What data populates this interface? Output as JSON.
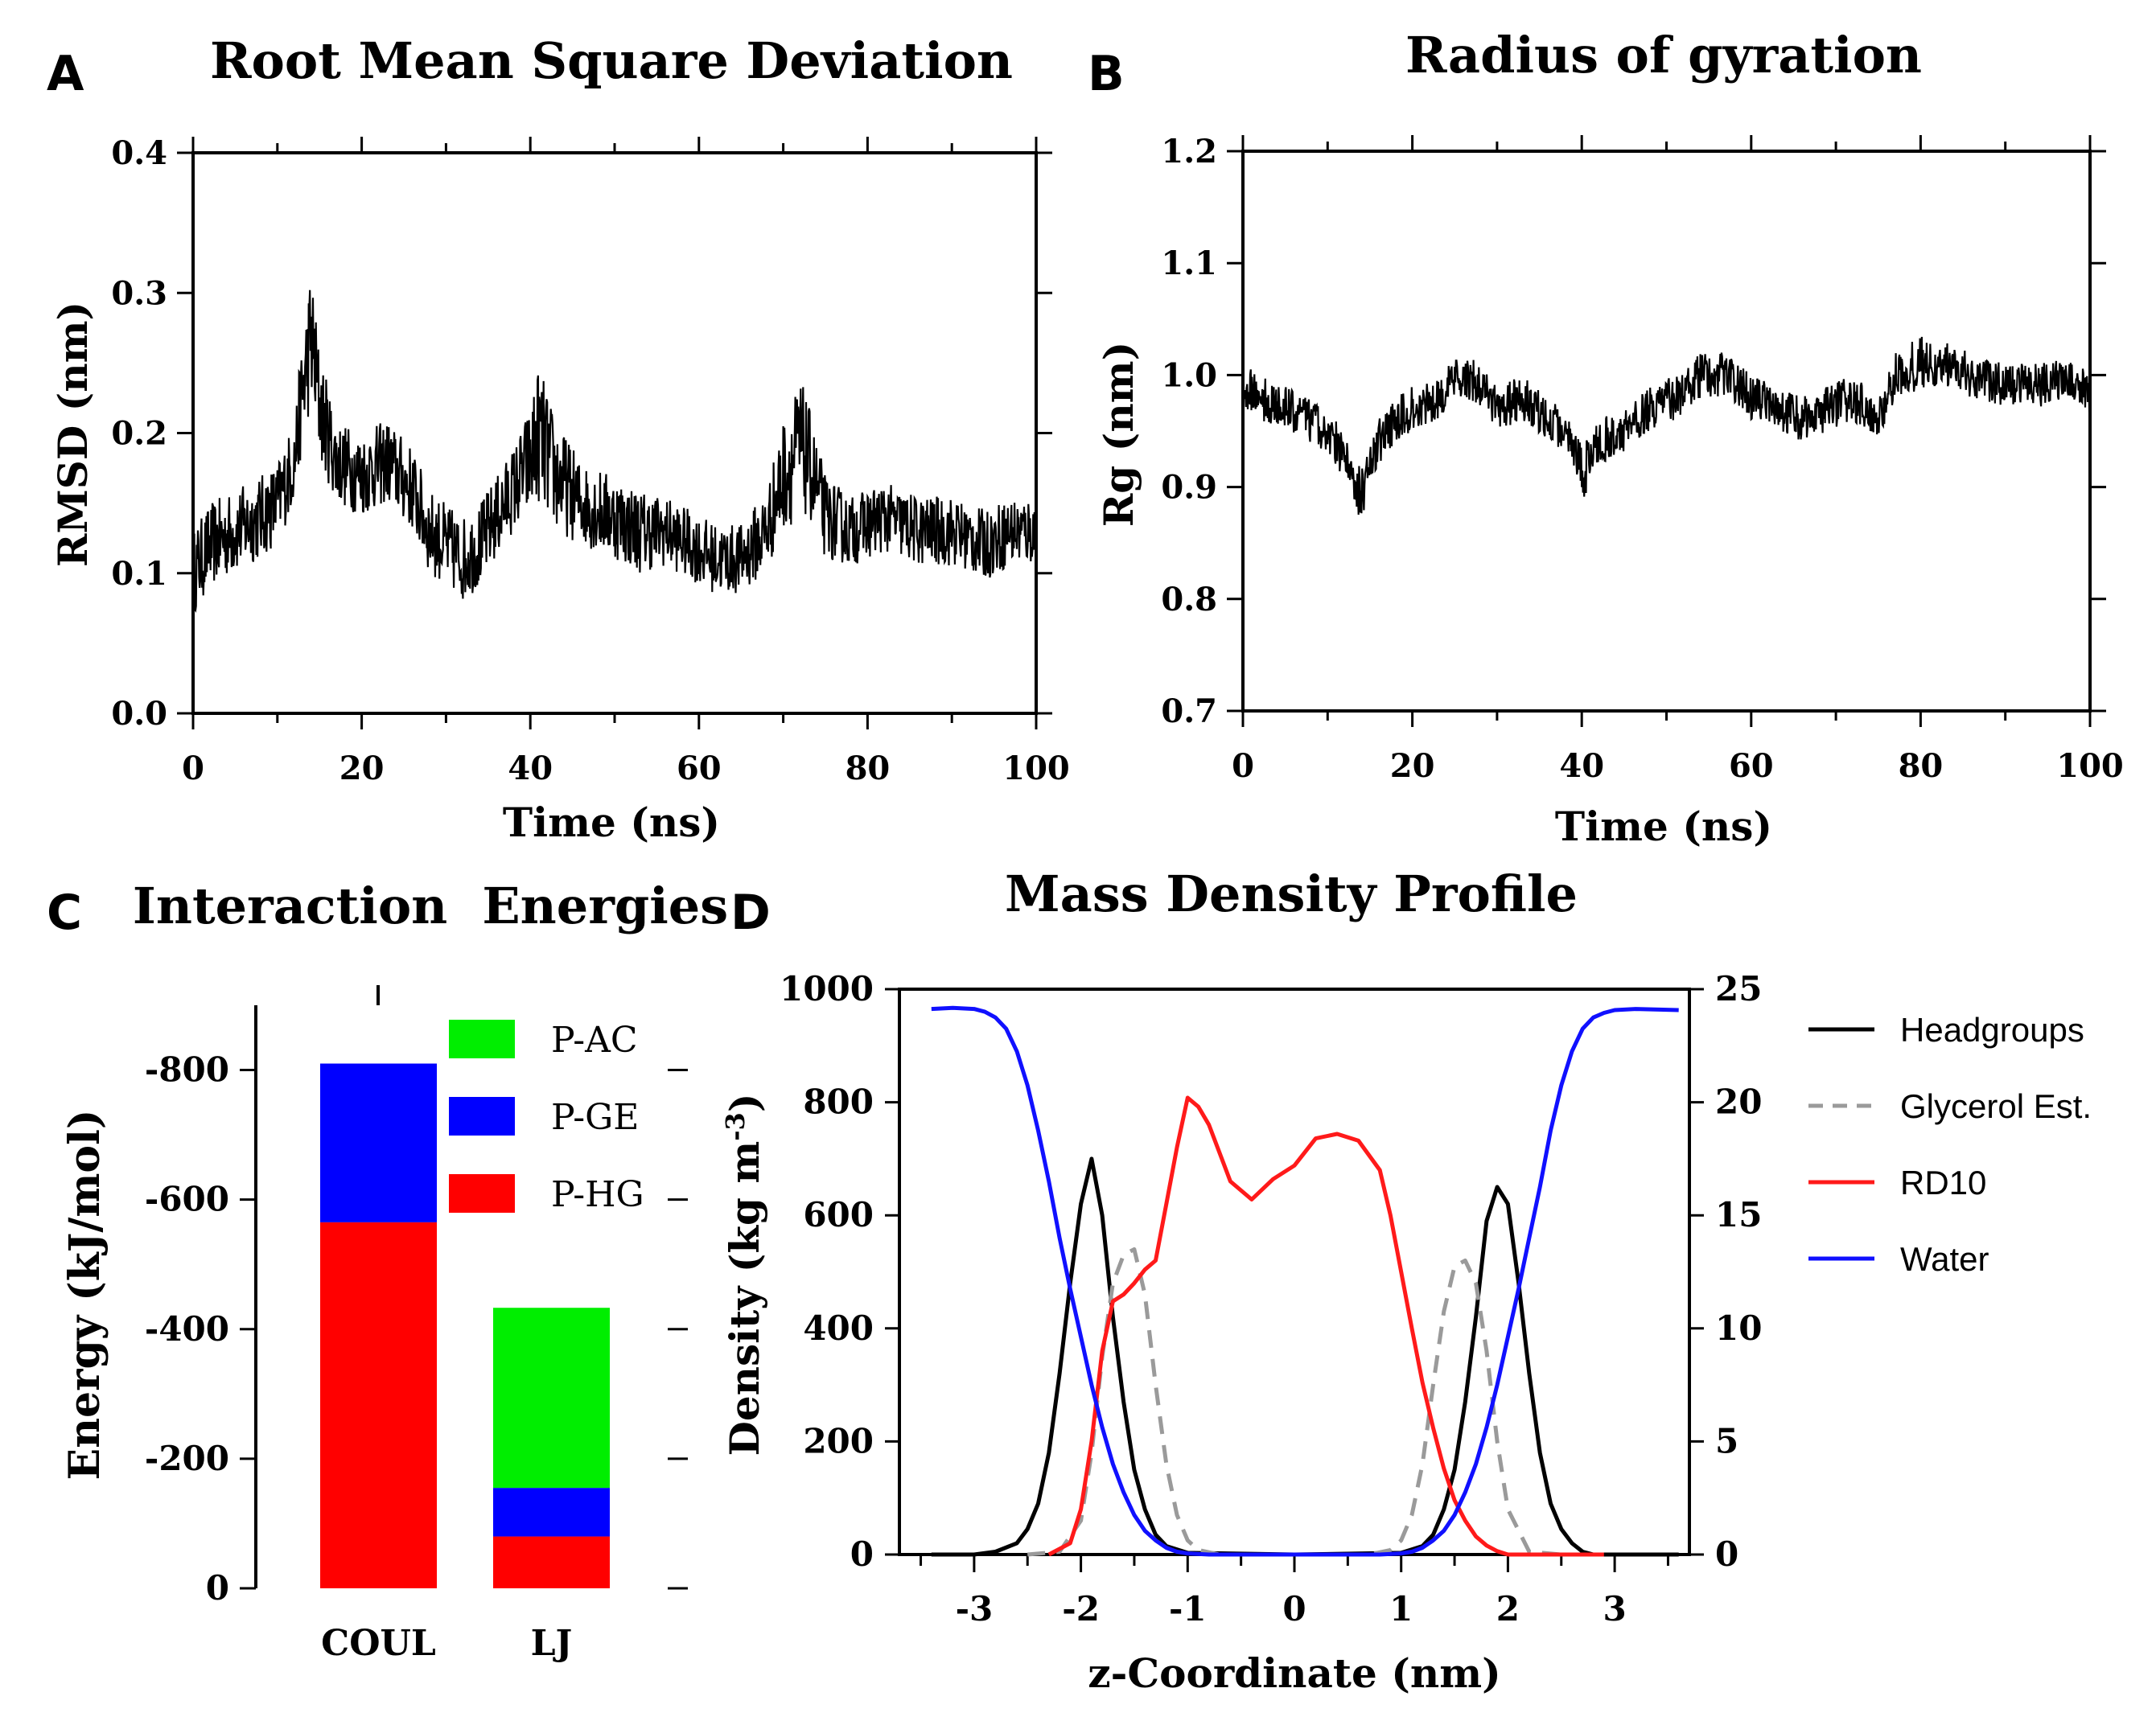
{
  "panels": {
    "A": {
      "letter": "A"
    },
    "B": {
      "letter": "B"
    },
    "C": {
      "letter": "C"
    },
    "D": {
      "letter": "D"
    }
  },
  "colors": {
    "black": "#000000",
    "gray": "#9a9a9a",
    "red": "#ff1a1a",
    "blue": "#1010ff",
    "green": "#00ee00",
    "bar_blue": "#0000ff",
    "bar_red": "#ff0000"
  },
  "chart_data": [
    {
      "id": "A",
      "type": "line",
      "title": "Root Mean Square Deviation",
      "xlabel": "Time (ns)",
      "ylabel": "RMSD (nm)",
      "xlim": [
        0,
        100
      ],
      "ylim": [
        0,
        0.4
      ],
      "xticks": [
        0,
        20,
        40,
        60,
        80,
        100
      ],
      "xtick_labels": [
        "0",
        "20",
        "40",
        "60",
        "80",
        "100"
      ],
      "yticks": [
        0,
        0.1,
        0.2,
        0.3,
        0.4
      ],
      "ytick_labels": [
        "0.0",
        "0.1",
        "0.2",
        "0.3",
        "0.4"
      ],
      "series": [
        {
          "name": "RMSD",
          "color": "#000000",
          "x": [
            0,
            2,
            5,
            8,
            10,
            12,
            13,
            14,
            15,
            17,
            20,
            23,
            26,
            28,
            30,
            32,
            34,
            36,
            38,
            40,
            41,
            43,
            46,
            50,
            53,
            56,
            59,
            62,
            65,
            68,
            70,
            72,
            73,
            75,
            78,
            82,
            86,
            90,
            94,
            97,
            100
          ],
          "y": [
            0.1,
            0.12,
            0.13,
            0.14,
            0.15,
            0.18,
            0.23,
            0.27,
            0.22,
            0.18,
            0.17,
            0.18,
            0.16,
            0.13,
            0.12,
            0.11,
            0.12,
            0.14,
            0.16,
            0.18,
            0.2,
            0.17,
            0.15,
            0.14,
            0.13,
            0.13,
            0.12,
            0.11,
            0.11,
            0.13,
            0.17,
            0.19,
            0.18,
            0.14,
            0.13,
            0.14,
            0.13,
            0.13,
            0.12,
            0.13,
            0.13
          ],
          "spread": [
            0.03,
            0.03,
            0.03,
            0.03,
            0.03,
            0.03,
            0.04,
            0.05,
            0.04,
            0.03,
            0.03,
            0.03,
            0.03,
            0.03,
            0.03,
            0.03,
            0.03,
            0.03,
            0.03,
            0.04,
            0.05,
            0.04,
            0.03,
            0.03,
            0.03,
            0.025,
            0.025,
            0.025,
            0.025,
            0.03,
            0.04,
            0.05,
            0.04,
            0.03,
            0.025,
            0.025,
            0.025,
            0.025,
            0.025,
            0.025,
            0.025
          ]
        }
      ]
    },
    {
      "id": "B",
      "type": "line",
      "title": "Radius of gyration",
      "xlabel": "Time (ns)",
      "ylabel": "Rg (nm)",
      "xlim": [
        0,
        100
      ],
      "ylim": [
        0.7,
        1.2
      ],
      "xticks": [
        0,
        20,
        40,
        60,
        80,
        100
      ],
      "xtick_labels": [
        "0",
        "20",
        "40",
        "60",
        "80",
        "100"
      ],
      "yticks": [
        0.7,
        0.8,
        0.9,
        1.0,
        1.1,
        1.2
      ],
      "ytick_labels": [
        "0.7",
        "0.8",
        "0.9",
        "1.0",
        "1.1",
        "1.2"
      ],
      "series": [
        {
          "name": "Rg",
          "color": "#000000",
          "x": [
            0,
            2,
            5,
            8,
            11,
            13,
            14,
            16,
            18,
            20,
            23,
            26,
            28,
            30,
            33,
            36,
            39,
            40,
            42,
            45,
            48,
            51,
            54,
            57,
            60,
            63,
            66,
            69,
            72,
            75,
            77,
            80,
            83,
            86,
            90,
            94,
            97,
            100
          ],
          "y": [
            0.99,
            0.98,
            0.97,
            0.96,
            0.94,
            0.91,
            0.89,
            0.94,
            0.96,
            0.97,
            0.98,
            1.0,
            0.99,
            0.97,
            0.98,
            0.96,
            0.94,
            0.91,
            0.94,
            0.95,
            0.97,
            0.98,
            1.0,
            1.0,
            0.98,
            0.97,
            0.96,
            0.97,
            0.98,
            0.96,
            1.0,
            1.01,
            1.01,
            1.0,
            0.99,
            0.99,
            1.0,
            0.98
          ],
          "spread": [
            0.02,
            0.02,
            0.02,
            0.02,
            0.02,
            0.02,
            0.025,
            0.02,
            0.02,
            0.02,
            0.02,
            0.02,
            0.02,
            0.02,
            0.02,
            0.02,
            0.02,
            0.025,
            0.02,
            0.02,
            0.02,
            0.02,
            0.02,
            0.02,
            0.02,
            0.02,
            0.02,
            0.02,
            0.02,
            0.02,
            0.02,
            0.025,
            0.02,
            0.02,
            0.02,
            0.02,
            0.02,
            0.02
          ]
        }
      ]
    },
    {
      "id": "C",
      "type": "bar",
      "stacked": true,
      "title": "Interaction  Energies",
      "ylabel": "Energy (kJ/mol)",
      "categories": [
        "COUL",
        "LJ"
      ],
      "ylim": [
        0,
        -900
      ],
      "yticks": [
        0,
        -200,
        -400,
        -600,
        -800
      ],
      "ytick_labels": [
        "0",
        "-200",
        "-400",
        "-600",
        "-800"
      ],
      "series": [
        {
          "name": "P-HG",
          "color": "#ff0000",
          "values": [
            -565,
            -80
          ]
        },
        {
          "name": "P-GE",
          "color": "#0000ff",
          "values": [
            -245,
            -75
          ]
        },
        {
          "name": "P-AC",
          "color": "#00ee00",
          "values": [
            0,
            -278
          ]
        }
      ],
      "legend_order": [
        "P-AC",
        "P-GE",
        "P-HG"
      ],
      "legend_position": "top-right"
    },
    {
      "id": "D",
      "type": "line",
      "title": "Mass Density Profile",
      "xlabel": "z-Coordinate (nm)",
      "ylabel": "Density (kg m",
      "ylabel_sup": "-3",
      "ylabel_end": ")",
      "xlim": [
        -3.7,
        3.7
      ],
      "ylim": [
        0,
        1000
      ],
      "y2lim": [
        0,
        25
      ],
      "xticks": [
        -3,
        -2,
        -1,
        0,
        1,
        2,
        3
      ],
      "xtick_labels": [
        "-3",
        "-2",
        "-1",
        "0",
        "1",
        "2",
        "3"
      ],
      "yticks": [
        0,
        200,
        400,
        600,
        800,
        1000
      ],
      "ytick_labels": [
        "0",
        "200",
        "400",
        "600",
        "800",
        "1000"
      ],
      "y2ticks": [
        0,
        5,
        10,
        15,
        20,
        25
      ],
      "y2tick_labels": [
        "0",
        "5",
        "10",
        "15",
        "20",
        "25"
      ],
      "legend_position": "right",
      "series": [
        {
          "name": "Headgroups",
          "color": "#000000",
          "axis": "left",
          "dash": false,
          "x": [
            -3.4,
            -3.0,
            -2.8,
            -2.6,
            -2.5,
            -2.4,
            -2.3,
            -2.2,
            -2.1,
            -2.0,
            -1.9,
            -1.8,
            -1.7,
            -1.6,
            -1.5,
            -1.4,
            -1.3,
            -1.2,
            -1.0,
            0,
            1.0,
            1.2,
            1.3,
            1.4,
            1.5,
            1.6,
            1.7,
            1.8,
            1.9,
            2.0,
            2.1,
            2.2,
            2.3,
            2.4,
            2.5,
            2.6,
            2.7,
            2.8,
            3.0,
            3.6
          ],
          "y": [
            0,
            0,
            5,
            20,
            45,
            90,
            180,
            320,
            480,
            620,
            700,
            600,
            420,
            270,
            150,
            80,
            35,
            15,
            3,
            0,
            3,
            15,
            35,
            80,
            150,
            270,
            420,
            590,
            650,
            620,
            480,
            320,
            180,
            90,
            45,
            20,
            5,
            0,
            0,
            0
          ]
        },
        {
          "name": "Glycerol Est.",
          "color": "#9a9a9a",
          "axis": "left",
          "dash": true,
          "x": [
            -2.5,
            -2.2,
            -2.0,
            -1.9,
            -1.8,
            -1.7,
            -1.6,
            -1.5,
            -1.4,
            -1.3,
            -1.2,
            -1.1,
            -1.0,
            -0.9,
            -0.7,
            0.7,
            0.9,
            1.0,
            1.1,
            1.2,
            1.3,
            1.4,
            1.5,
            1.6,
            1.7,
            1.8,
            1.9,
            2.0,
            2.2,
            2.5
          ],
          "y": [
            0,
            5,
            60,
            180,
            350,
            480,
            530,
            540,
            460,
            300,
            160,
            70,
            25,
            8,
            0,
            0,
            8,
            25,
            70,
            160,
            300,
            430,
            510,
            520,
            480,
            360,
            200,
            80,
            5,
            0
          ]
        },
        {
          "name": "RD10",
          "color": "#ff1a1a",
          "axis": "right",
          "dash": false,
          "x": [
            -2.3,
            -2.1,
            -2.0,
            -1.9,
            -1.8,
            -1.7,
            -1.6,
            -1.5,
            -1.4,
            -1.3,
            -1.2,
            -1.1,
            -1.0,
            -0.9,
            -0.8,
            -0.6,
            -0.4,
            -0.2,
            0.0,
            0.2,
            0.4,
            0.6,
            0.8,
            0.9,
            1.0,
            1.1,
            1.2,
            1.3,
            1.4,
            1.5,
            1.6,
            1.7,
            1.8,
            1.9,
            2.0,
            2.2,
            2.5,
            2.9
          ],
          "y": [
            0,
            0.5,
            2,
            5,
            9,
            11.2,
            11.5,
            12,
            12.6,
            13,
            15.5,
            18,
            20.2,
            19.8,
            19,
            16.5,
            15.7,
            16.6,
            17.2,
            18.4,
            18.6,
            18.3,
            17,
            15,
            12.5,
            10,
            7.6,
            5.6,
            3.8,
            2.4,
            1.5,
            0.8,
            0.4,
            0.15,
            0,
            0,
            0,
            0
          ]
        },
        {
          "name": "Water",
          "color": "#1010ff",
          "axis": "left",
          "dash": false,
          "x": [
            -3.4,
            -3.2,
            -3.0,
            -2.9,
            -2.8,
            -2.7,
            -2.6,
            -2.5,
            -2.4,
            -2.3,
            -2.2,
            -2.1,
            -2.0,
            -1.9,
            -1.8,
            -1.7,
            -1.6,
            -1.5,
            -1.4,
            -1.3,
            -1.2,
            -1.1,
            -1.0,
            -0.8,
            0.8,
            1.0,
            1.1,
            1.2,
            1.3,
            1.4,
            1.5,
            1.6,
            1.7,
            1.8,
            1.9,
            2.0,
            2.1,
            2.2,
            2.3,
            2.4,
            2.5,
            2.6,
            2.7,
            2.8,
            2.9,
            3.0,
            3.2,
            3.6
          ],
          "y": [
            965,
            967,
            965,
            960,
            950,
            930,
            890,
            830,
            750,
            660,
            560,
            470,
            385,
            300,
            225,
            160,
            110,
            70,
            42,
            25,
            12,
            5,
            2,
            0,
            0,
            2,
            5,
            12,
            25,
            42,
            70,
            110,
            160,
            225,
            300,
            385,
            470,
            560,
            650,
            750,
            830,
            890,
            930,
            950,
            958,
            963,
            965,
            963
          ]
        }
      ]
    }
  ]
}
